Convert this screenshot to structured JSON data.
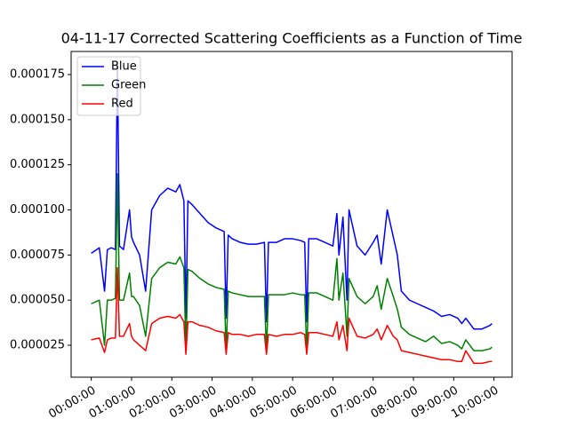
{
  "chart_data": {
    "type": "line",
    "title": "04-11-17 Corrected Scattering Coefficients as a Function of Time",
    "x": [
      0,
      0.2,
      0.33,
      0.4,
      0.5,
      0.6,
      0.65,
      0.7,
      0.8,
      0.95,
      1.0,
      1.05,
      1.2,
      1.35,
      1.5,
      1.7,
      1.9,
      2.1,
      2.2,
      2.3,
      2.35,
      2.4,
      2.5,
      2.7,
      2.9,
      3.1,
      3.3,
      3.35,
      3.4,
      3.5,
      3.7,
      3.9,
      4.1,
      4.3,
      4.35,
      4.4,
      4.6,
      4.8,
      5.0,
      5.2,
      5.3,
      5.35,
      5.4,
      5.6,
      5.8,
      6.0,
      6.1,
      6.15,
      6.25,
      6.35,
      6.4,
      6.6,
      6.8,
      7.0,
      7.1,
      7.2,
      7.35,
      7.5,
      7.6,
      7.7,
      7.9,
      8.1,
      8.3,
      8.5,
      8.7,
      8.9,
      9.1,
      9.2,
      9.3,
      9.5,
      9.7,
      9.9,
      9.95
    ],
    "series": [
      {
        "name": "Blue",
        "color": "#0000ff",
        "values": [
          7.6e-05,
          7.9e-05,
          5.5e-05,
          7.8e-05,
          7.9e-05,
          7.8e-05,
          0.000182,
          8e-05,
          7.8e-05,
          0.0001,
          8.5e-05,
          8.2e-05,
          7.5e-05,
          5.5e-05,
          0.0001,
          0.000108,
          0.000112,
          0.00011,
          0.000114,
          0.000105,
          4e-05,
          0.000105,
          0.000103,
          9.8e-05,
          9.3e-05,
          9e-05,
          8.8e-05,
          4e-05,
          8.6e-05,
          8.4e-05,
          8.2e-05,
          8.1e-05,
          8.1e-05,
          8.2e-05,
          3.8e-05,
          8.2e-05,
          8.2e-05,
          8.4e-05,
          8.4e-05,
          8.3e-05,
          8.2e-05,
          3.8e-05,
          8.4e-05,
          8.4e-05,
          8.2e-05,
          8e-05,
          9.8e-05,
          7.5e-05,
          9.6e-05,
          5e-05,
          0.0001,
          8e-05,
          7.5e-05,
          8.2e-05,
          8.6e-05,
          7e-05,
          0.0001,
          8.5e-05,
          7.5e-05,
          5.5e-05,
          5e-05,
          4.8e-05,
          4.6e-05,
          4.4e-05,
          4.1e-05,
          4.2e-05,
          4e-05,
          3.7e-05,
          4e-05,
          3.4e-05,
          3.4e-05,
          3.6e-05,
          3.7e-05
        ]
      },
      {
        "name": "Green",
        "color": "#008000",
        "values": [
          4.8e-05,
          5e-05,
          2.5e-05,
          5e-05,
          5e-05,
          5.1e-05,
          0.00012,
          5e-05,
          5e-05,
          6.5e-05,
          5.2e-05,
          5.2e-05,
          4.7e-05,
          3e-05,
          6.2e-05,
          6.8e-05,
          7.1e-05,
          7e-05,
          7.4e-05,
          6.8e-05,
          2.2e-05,
          6.7e-05,
          6.6e-05,
          6.2e-05,
          5.9e-05,
          5.7e-05,
          5.6e-05,
          2.2e-05,
          5.5e-05,
          5.4e-05,
          5.3e-05,
          5.2e-05,
          5.2e-05,
          5.2e-05,
          2.2e-05,
          5.3e-05,
          5.3e-05,
          5.3e-05,
          5.4e-05,
          5.3e-05,
          5.3e-05,
          2.2e-05,
          5.4e-05,
          5.4e-05,
          5.2e-05,
          5e-05,
          7.3e-05,
          5e-05,
          6.5e-05,
          3e-05,
          6.2e-05,
          5.2e-05,
          4.8e-05,
          5.2e-05,
          5.8e-05,
          4.5e-05,
          6.2e-05,
          5.2e-05,
          4.5e-05,
          3.5e-05,
          3.1e-05,
          2.9e-05,
          2.7e-05,
          3e-05,
          2.6e-05,
          2.7e-05,
          2.5e-05,
          2.3e-05,
          2.8e-05,
          2.2e-05,
          2.2e-05,
          2.3e-05,
          2.4e-05
        ]
      },
      {
        "name": "Red",
        "color": "#ff0000",
        "values": [
          2.8e-05,
          2.9e-05,
          2.1e-05,
          2.8e-05,
          2.9e-05,
          2.9e-05,
          6.8e-05,
          3e-05,
          3e-05,
          3.7e-05,
          3e-05,
          2.8e-05,
          2.5e-05,
          2.2e-05,
          3.7e-05,
          4e-05,
          4.1e-05,
          4e-05,
          4.2e-05,
          3.8e-05,
          2e-05,
          3.8e-05,
          3.8e-05,
          3.6e-05,
          3.5e-05,
          3.3e-05,
          3.2e-05,
          2e-05,
          3.2e-05,
          3.1e-05,
          3.1e-05,
          3e-05,
          3.1e-05,
          3.1e-05,
          2e-05,
          3.1e-05,
          3e-05,
          3.1e-05,
          3.1e-05,
          3.2e-05,
          3.1e-05,
          2e-05,
          3.2e-05,
          3.2e-05,
          3.1e-05,
          3e-05,
          3.8e-05,
          2.8e-05,
          3.6e-05,
          2.2e-05,
          4e-05,
          3e-05,
          2.9e-05,
          3.1e-05,
          3.4e-05,
          2.8e-05,
          3.6e-05,
          3e-05,
          2.8e-05,
          2.2e-05,
          2.1e-05,
          2e-05,
          1.9e-05,
          1.8e-05,
          1.7e-05,
          1.7e-05,
          1.6e-05,
          1.6e-05,
          2.2e-05,
          1.5e-05,
          1.5e-05,
          1.6e-05,
          1.6e-05
        ]
      }
    ],
    "xlim": [
      -0.5,
      10.45
    ],
    "xticks": [
      {
        "value": 0,
        "label": "00:00:00"
      },
      {
        "value": 1,
        "label": "01:00:00"
      },
      {
        "value": 2,
        "label": "02:00:00"
      },
      {
        "value": 3,
        "label": "03:00:00"
      },
      {
        "value": 4,
        "label": "04:00:00"
      },
      {
        "value": 5,
        "label": "05:00:00"
      },
      {
        "value": 6,
        "label": "06:00:00"
      },
      {
        "value": 7,
        "label": "07:00:00"
      },
      {
        "value": 8,
        "label": "08:00:00"
      },
      {
        "value": 9,
        "label": "09:00:00"
      },
      {
        "value": 10,
        "label": "10:00:00"
      }
    ],
    "ylim": [
      7.3e-06,
      0.0001878
    ],
    "yticks": [
      {
        "value": 2.5e-05,
        "label": "0.000025"
      },
      {
        "value": 5e-05,
        "label": "0.000050"
      },
      {
        "value": 7.5e-05,
        "label": "0.000075"
      },
      {
        "value": 0.0001,
        "label": "0.000100"
      },
      {
        "value": 0.000125,
        "label": "0.000125"
      },
      {
        "value": 0.00015,
        "label": "0.000150"
      },
      {
        "value": 0.000175,
        "label": "0.000175"
      }
    ],
    "legend": "upper left",
    "grid": false
  }
}
